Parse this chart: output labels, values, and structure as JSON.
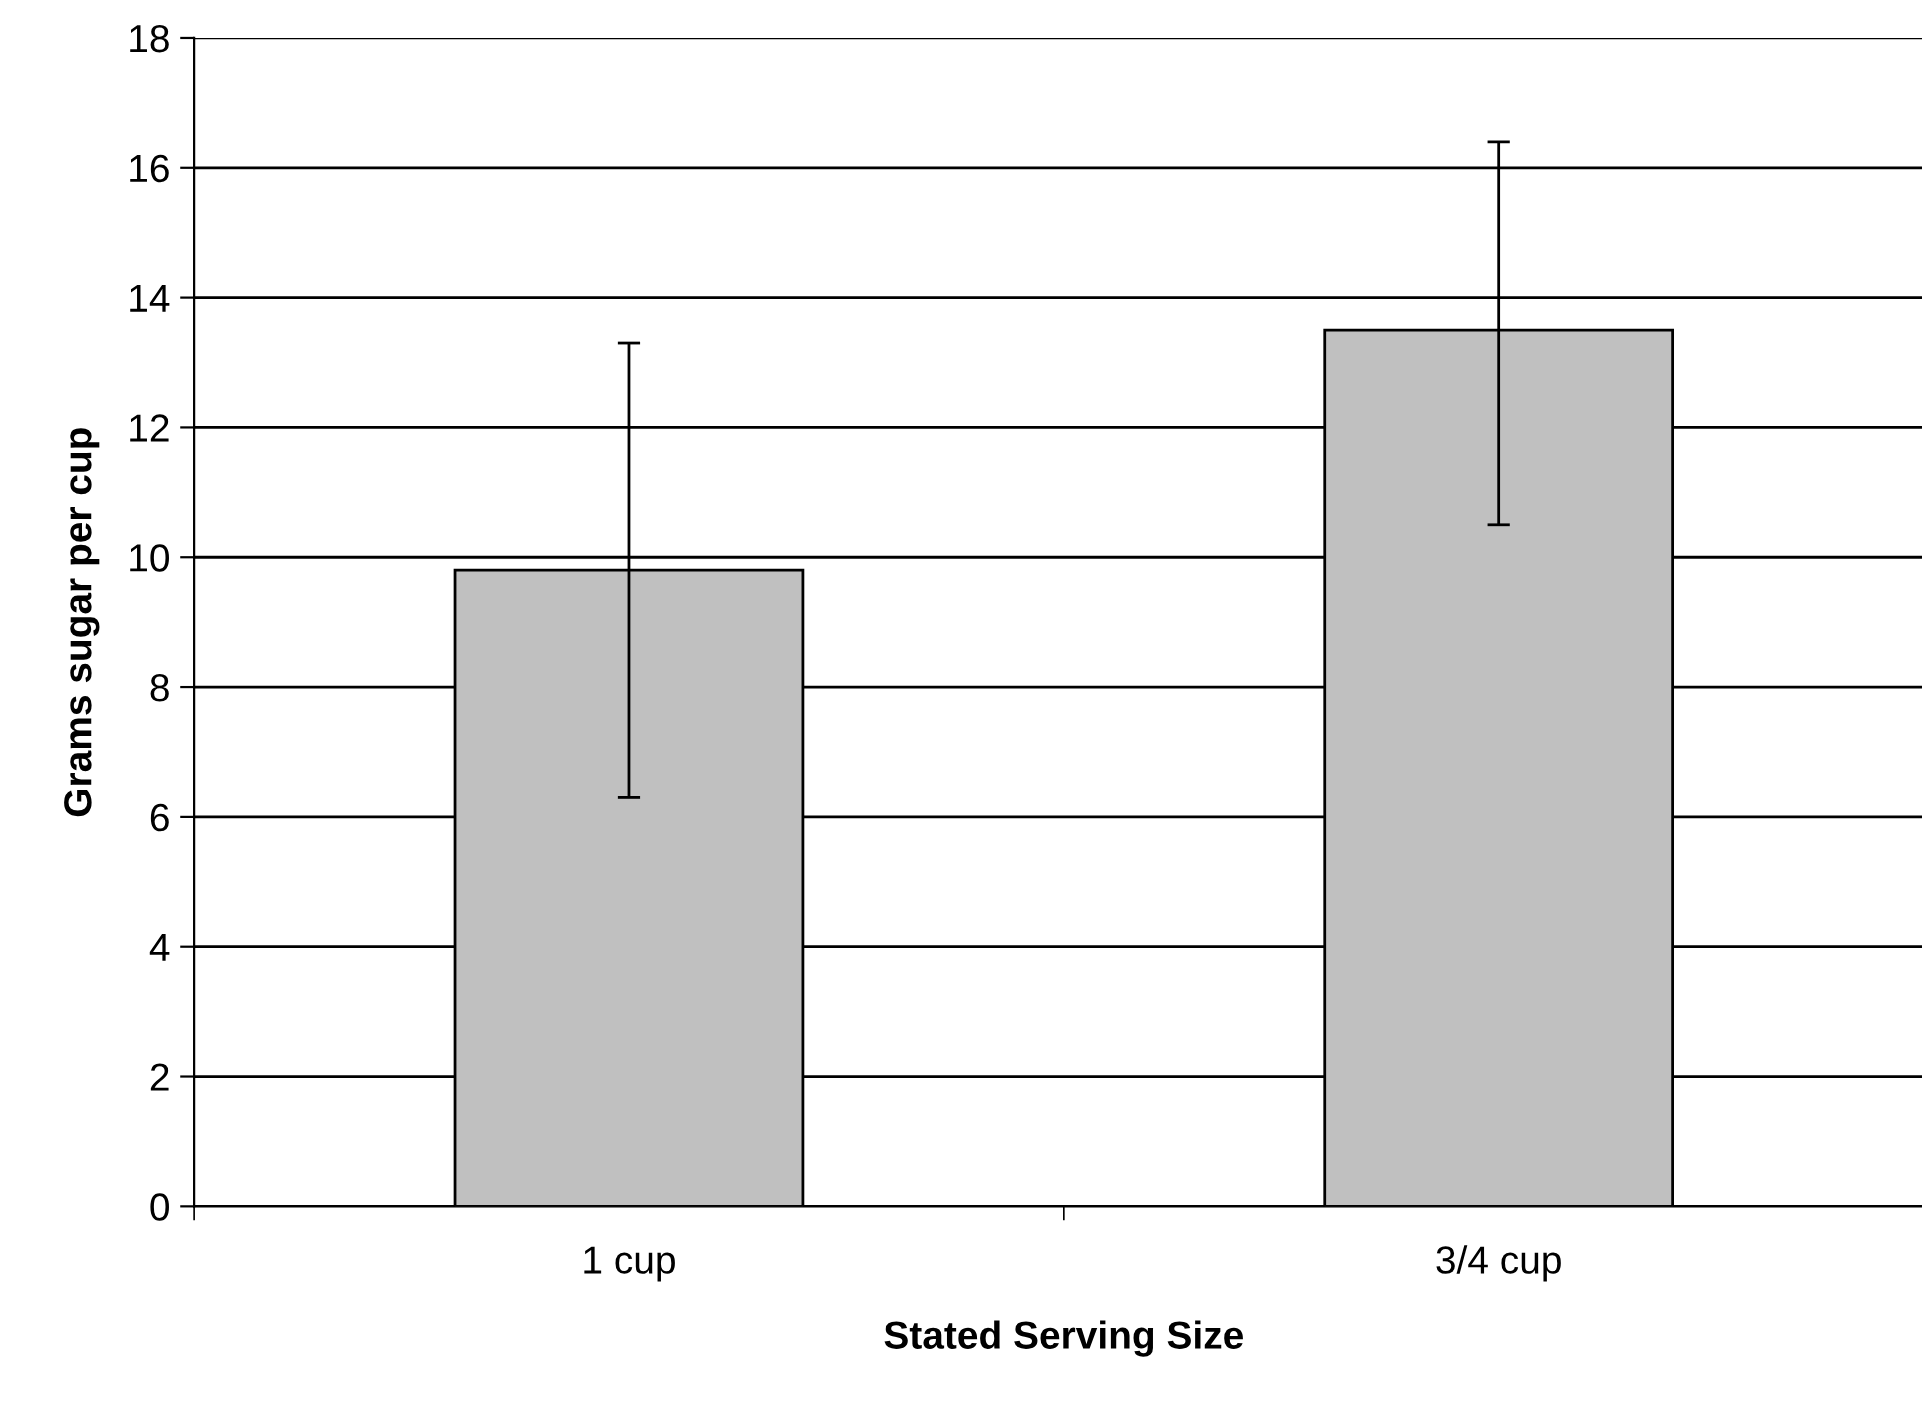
{
  "chart_data": {
    "type": "bar",
    "xlabel": "Stated Serving Size",
    "ylabel": "Grams sugar per cup",
    "categories": [
      "1 cup",
      "3/4 cup"
    ],
    "values": [
      9.8,
      13.5
    ],
    "errors": [
      [
        6.3,
        13.3
      ],
      [
        10.5,
        16.4
      ]
    ],
    "color": "#c0c0c0",
    "ylim": [
      0,
      18
    ],
    "yticks": [
      0,
      2,
      4,
      6,
      8,
      10,
      12,
      14,
      16,
      18
    ],
    "grid": "y",
    "legend": false
  }
}
